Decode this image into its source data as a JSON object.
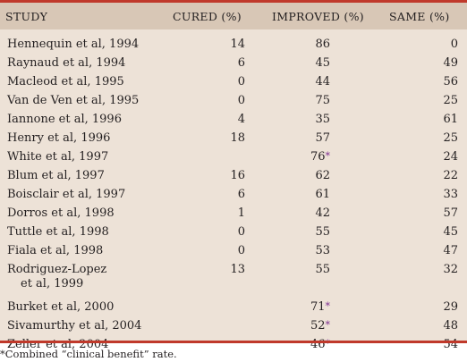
{
  "header": {
    "study": "STUDY",
    "cured": "CURED (%)",
    "improved": "IMPROVED (%)",
    "same": "SAME (%)"
  },
  "rows": [
    {
      "study": "Hennequin et al, 1994",
      "cured": "14",
      "improved": "86",
      "same": "0"
    },
    {
      "study": "Raynaud et al, 1994",
      "cured": "6",
      "improved": "45",
      "same": "49"
    },
    {
      "study": "Macleod et al, 1995",
      "cured": "0",
      "improved": "44",
      "same": "56"
    },
    {
      "study": "Van de Ven et al, 1995",
      "cured": "0",
      "improved": "75",
      "same": "25"
    },
    {
      "study": "Iannone et al, 1996",
      "cured": "4",
      "improved": "35",
      "same": "61"
    },
    {
      "study": "Henry et al, 1996",
      "cured": "18",
      "improved": "57",
      "same": "25"
    },
    {
      "study": "White et al, 1997",
      "cured": "",
      "improved": "76",
      "improved_mark": "*",
      "same": "24"
    },
    {
      "study": "Blum et al, 1997",
      "cured": "16",
      "improved": "62",
      "same": "22"
    },
    {
      "study": "Boisclair et al, 1997",
      "cured": "6",
      "improved": "61",
      "same": "33"
    },
    {
      "study": "Dorros et al, 1998",
      "cured": "1",
      "improved": "42",
      "same": "57"
    },
    {
      "study": "Tuttle et al, 1998",
      "cured": "0",
      "improved": "55",
      "same": "45"
    },
    {
      "study": "Fiala et al, 1998",
      "cured": "0",
      "improved": "53",
      "same": "47"
    },
    {
      "study": "Rodriguez-Lopez",
      "study_line2": "et al, 1999",
      "cured": "13",
      "improved": "55",
      "same": "32"
    },
    {
      "study": "Burket et al, 2000",
      "cured": "",
      "improved": "71",
      "improved_mark": "*",
      "same": "29"
    },
    {
      "study": "Sivamurthy et al, 2004",
      "cured": "",
      "improved": "52",
      "improved_mark": "*",
      "same": "48"
    },
    {
      "study": "Zeller et al, 2004",
      "cured": "",
      "improved": "46",
      "improved_mark": "*",
      "same": "54"
    }
  ],
  "footnote": "*Combined “clinical benefit” rate.",
  "colors": {
    "rule": "#c0392b",
    "header_bg": "#d8c7b6",
    "body_bg": "#ede2d7",
    "footnote_mark": "#7b2c8f"
  }
}
